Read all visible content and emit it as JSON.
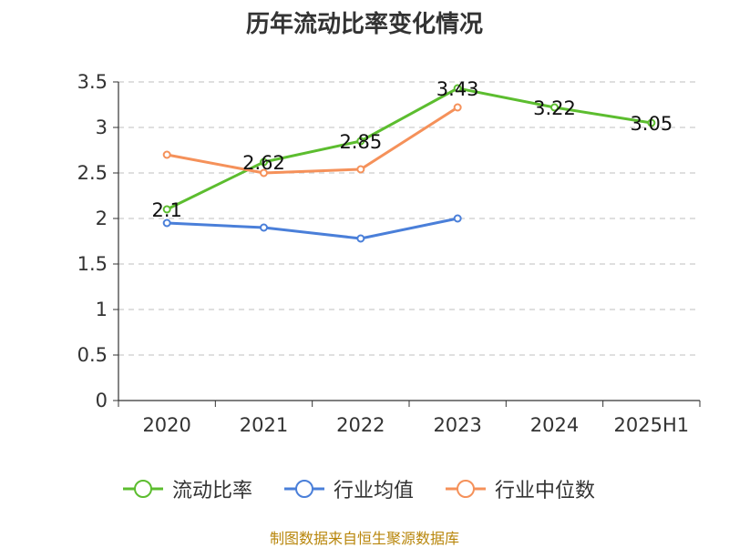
{
  "title": "历年流动比率变化情况",
  "source": "制图数据来自恒生聚源数据库",
  "colors": {
    "source_text": "#b8860b",
    "grid": "#cccccc",
    "axis": "#333333"
  },
  "chart_data": {
    "type": "line",
    "categories": [
      "2020",
      "2021",
      "2022",
      "2023",
      "2024",
      "2025H1"
    ],
    "ylim": [
      0,
      3.5
    ],
    "yticks": [
      "0",
      "0.5",
      "1",
      "1.5",
      "2",
      "2.5",
      "3",
      "3.5"
    ],
    "grid": true,
    "legend_position": "bottom",
    "series": [
      {
        "name": "流动比率",
        "color": "#5cbd2f",
        "values": [
          2.1,
          2.62,
          2.85,
          3.43,
          3.22,
          3.05
        ],
        "labels": [
          "2.1",
          "2.62",
          "2.85",
          "3.43",
          "3.22",
          "3.05"
        ],
        "show_labels": true
      },
      {
        "name": "行业均值",
        "color": "#4a7fd9",
        "values": [
          1.95,
          1.9,
          1.78,
          2.0,
          null,
          null
        ],
        "show_labels": false
      },
      {
        "name": "行业中位数",
        "color": "#f5915a",
        "values": [
          2.7,
          2.5,
          2.54,
          3.22,
          null,
          null
        ],
        "show_labels": false
      }
    ]
  }
}
